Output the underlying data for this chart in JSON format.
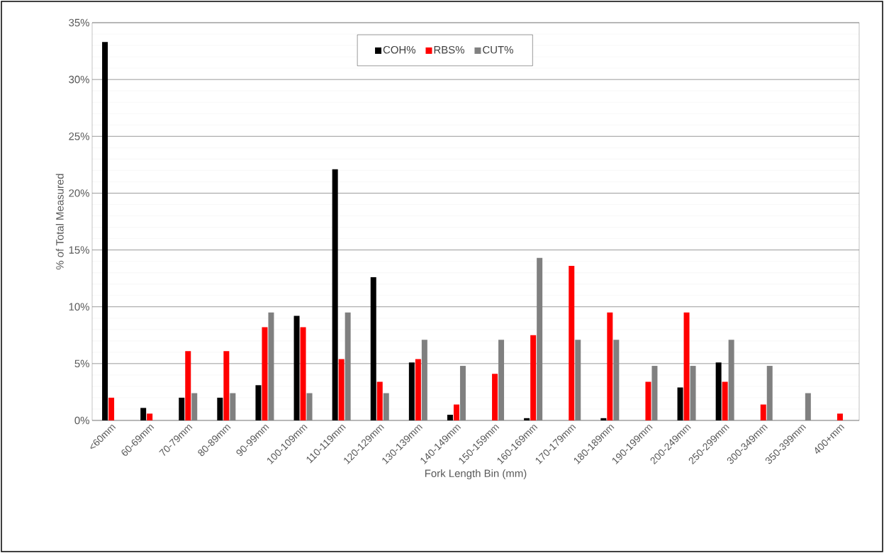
{
  "chart_data": {
    "type": "bar",
    "xlabel": "Fork Length Bin (mm)",
    "ylabel": "% of Total Measured",
    "categories": [
      "<60mm",
      "60-69mm",
      "70-79mm",
      "80-89mm",
      "90-99mm",
      "100-109mm",
      "110-119mm",
      "120-129mm",
      "130-139mm",
      "140-149mm",
      "150-159mm",
      "160-169mm",
      "170-179mm",
      "180-189mm",
      "190-199mm",
      "200-249mm",
      "250-299mm",
      "300-349mm",
      "350-399mm",
      "400+mm"
    ],
    "series": [
      {
        "name": "COH%",
        "color": "#000000",
        "values": [
          33.3,
          1.1,
          2.0,
          2.0,
          3.1,
          9.2,
          22.1,
          12.6,
          5.1,
          0.5,
          0,
          0.2,
          0,
          0.2,
          0,
          2.9,
          5.1,
          0,
          0,
          0
        ]
      },
      {
        "name": "RBS%",
        "color": "#ff0000",
        "values": [
          2.0,
          0.6,
          6.1,
          6.1,
          8.2,
          8.2,
          5.4,
          3.4,
          5.4,
          1.4,
          4.1,
          7.5,
          13.6,
          9.5,
          3.4,
          9.5,
          3.4,
          1.4,
          0,
          0.6
        ]
      },
      {
        "name": "CUT%",
        "color": "#808080",
        "values": [
          0,
          0,
          2.4,
          2.4,
          9.5,
          2.4,
          9.5,
          2.4,
          7.1,
          4.8,
          7.1,
          14.3,
          7.1,
          7.1,
          4.8,
          4.8,
          7.1,
          4.8,
          2.4,
          0
        ]
      }
    ],
    "ylim": [
      0,
      35
    ],
    "yticks": [
      {
        "value": 0,
        "label": "0%"
      },
      {
        "value": 5,
        "label": "5%"
      },
      {
        "value": 10,
        "label": "10%"
      },
      {
        "value": 15,
        "label": "15%"
      },
      {
        "value": 20,
        "label": "20%"
      },
      {
        "value": 25,
        "label": "25%"
      },
      {
        "value": 30,
        "label": "30%"
      },
      {
        "value": 35,
        "label": "35%"
      }
    ],
    "grid": "y",
    "legend": "top"
  }
}
